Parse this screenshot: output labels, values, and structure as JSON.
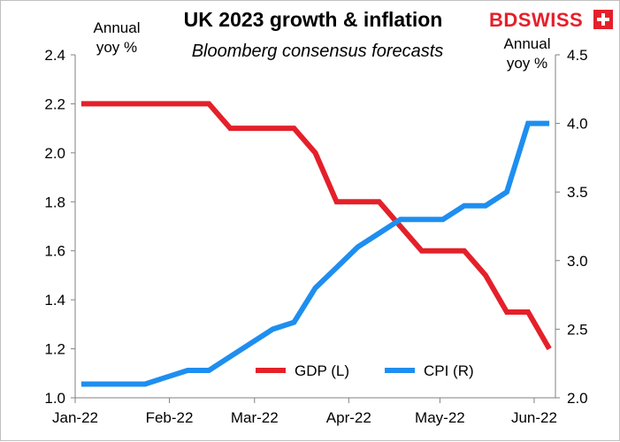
{
  "brand": {
    "logo_text": "BDSWISS",
    "color": "#e4202a"
  },
  "chart_data": {
    "type": "line",
    "title": "UK 2023 growth & inflation",
    "subtitle": "Bloomberg consensus forecasts",
    "left_axis_label": [
      "Annual",
      "yoy %"
    ],
    "right_axis_label": [
      "Annual",
      "yoy %"
    ],
    "x_ticks": [
      "Jan-22",
      "Feb-22",
      "Mar-22",
      "Apr-22",
      "May-22",
      "Jun-22"
    ],
    "y_left": {
      "min": 1.0,
      "max": 2.4,
      "ticks": [
        "1.0",
        "1.2",
        "1.4",
        "1.6",
        "1.8",
        "2.0",
        "2.2",
        "2.4"
      ]
    },
    "y_right": {
      "min": 2.0,
      "max": 4.5,
      "ticks": [
        "2.0",
        "2.5",
        "3.0",
        "3.5",
        "4.0",
        "4.5"
      ]
    },
    "x": [
      "2022-01-03",
      "2022-01-10",
      "2022-01-17",
      "2022-01-24",
      "2022-01-31",
      "2022-02-07",
      "2022-02-14",
      "2022-02-21",
      "2022-02-28",
      "2022-03-07",
      "2022-03-14",
      "2022-03-21",
      "2022-03-28",
      "2022-04-04",
      "2022-04-11",
      "2022-04-18",
      "2022-04-25",
      "2022-05-02",
      "2022-05-09",
      "2022-05-16",
      "2022-05-23",
      "2022-05-30",
      "2022-06-06"
    ],
    "series": [
      {
        "name": "GDP (L)",
        "axis": "left",
        "color": "#e4202a",
        "values": [
          2.2,
          2.2,
          2.2,
          2.2,
          2.2,
          2.2,
          2.2,
          2.1,
          2.1,
          2.1,
          2.1,
          2.0,
          1.8,
          1.8,
          1.8,
          1.7,
          1.6,
          1.6,
          1.6,
          1.5,
          1.35,
          1.35,
          1.2
        ]
      },
      {
        "name": "CPI (R)",
        "axis": "right",
        "color": "#1e8ef0",
        "values": [
          2.1,
          2.1,
          2.1,
          2.1,
          2.15,
          2.2,
          2.2,
          2.3,
          2.4,
          2.5,
          2.55,
          2.8,
          2.95,
          3.1,
          3.2,
          3.3,
          3.3,
          3.3,
          3.4,
          3.4,
          3.5,
          4.0,
          4.0
        ]
      }
    ]
  }
}
